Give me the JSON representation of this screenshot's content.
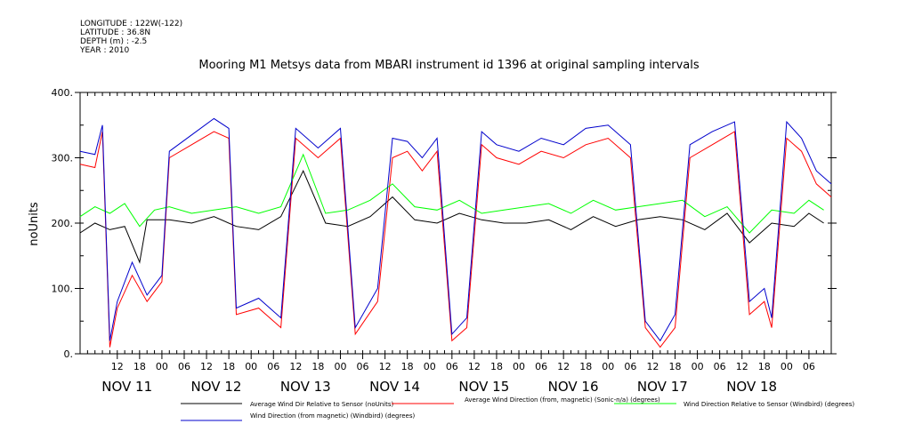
{
  "meta": {
    "longitude": "LONGITUDE : 122W(-122)",
    "latitude": "LATITUDE : 36.8N",
    "depth": "DEPTH (m) : -2.5",
    "year": "YEAR : 2010"
  },
  "chart_data": {
    "type": "line",
    "title": "Mooring M1 Metsys data from MBARI instrument id 1396 at original sampling intervals",
    "ylabel": "noUnits",
    "xlabel": "",
    "ylim": [
      0,
      400
    ],
    "xlim_hours": [
      0,
      202
    ],
    "y_ticks": [
      0,
      100,
      200,
      300,
      400
    ],
    "y_tick_labels": [
      "0.",
      "100.",
      "200.",
      "300.",
      "400."
    ],
    "x_hour_tick_labels": [
      "12",
      "18",
      "00",
      "06",
      "12",
      "18",
      "00",
      "06",
      "12",
      "18",
      "00",
      "06",
      "12",
      "18",
      "00",
      "06",
      "12",
      "18",
      "00",
      "06",
      "12",
      "18",
      "00",
      "06",
      "12",
      "18",
      "00",
      "06",
      "12",
      "18",
      "00",
      "06"
    ],
    "x_hour_tick_hours": [
      10,
      16,
      22,
      28,
      34,
      40,
      46,
      52,
      58,
      64,
      70,
      76,
      82,
      88,
      94,
      100,
      106,
      112,
      118,
      124,
      130,
      136,
      142,
      148,
      154,
      160,
      166,
      172,
      178,
      184,
      190,
      196
    ],
    "day_labels": [
      "NOV 11",
      "NOV 12",
      "NOV 13",
      "NOV 14",
      "NOV 15",
      "NOV 16",
      "NOV 17",
      "NOV 18"
    ],
    "day_label_hours": [
      4,
      28,
      52,
      76,
      100,
      124,
      148,
      172
    ],
    "grid": false,
    "legend_position": "bottom",
    "series": [
      {
        "name": "Average Wind Dir Relative to Sensor (noUnits)",
        "color": "#000000",
        "points": [
          [
            0,
            185
          ],
          [
            4,
            200
          ],
          [
            8,
            190
          ],
          [
            12,
            195
          ],
          [
            16,
            140
          ],
          [
            18,
            205
          ],
          [
            24,
            205
          ],
          [
            30,
            200
          ],
          [
            36,
            210
          ],
          [
            42,
            195
          ],
          [
            48,
            190
          ],
          [
            54,
            210
          ],
          [
            60,
            280
          ],
          [
            66,
            200
          ],
          [
            72,
            195
          ],
          [
            78,
            210
          ],
          [
            84,
            240
          ],
          [
            90,
            205
          ],
          [
            96,
            200
          ],
          [
            102,
            215
          ],
          [
            108,
            205
          ],
          [
            114,
            200
          ],
          [
            120,
            200
          ],
          [
            126,
            205
          ],
          [
            132,
            190
          ],
          [
            138,
            210
          ],
          [
            144,
            195
          ],
          [
            150,
            205
          ],
          [
            156,
            210
          ],
          [
            162,
            205
          ],
          [
            168,
            190
          ],
          [
            174,
            215
          ],
          [
            180,
            170
          ],
          [
            186,
            200
          ],
          [
            192,
            195
          ],
          [
            196,
            215
          ],
          [
            200,
            200
          ]
        ]
      },
      {
        "name": "Average Wind Direction (from, magnetic) (Sonic-n/a) (degrees)",
        "color": "#ff0000",
        "points": [
          [
            0,
            290
          ],
          [
            4,
            285
          ],
          [
            6,
            340
          ],
          [
            8,
            10
          ],
          [
            10,
            70
          ],
          [
            14,
            120
          ],
          [
            18,
            80
          ],
          [
            22,
            110
          ],
          [
            24,
            300
          ],
          [
            30,
            320
          ],
          [
            36,
            340
          ],
          [
            40,
            330
          ],
          [
            42,
            60
          ],
          [
            48,
            70
          ],
          [
            54,
            40
          ],
          [
            58,
            330
          ],
          [
            64,
            300
          ],
          [
            70,
            330
          ],
          [
            74,
            30
          ],
          [
            80,
            80
          ],
          [
            84,
            300
          ],
          [
            88,
            310
          ],
          [
            92,
            280
          ],
          [
            96,
            310
          ],
          [
            100,
            20
          ],
          [
            104,
            40
          ],
          [
            108,
            320
          ],
          [
            112,
            300
          ],
          [
            118,
            290
          ],
          [
            124,
            310
          ],
          [
            130,
            300
          ],
          [
            136,
            320
          ],
          [
            142,
            330
          ],
          [
            148,
            300
          ],
          [
            152,
            40
          ],
          [
            156,
            10
          ],
          [
            160,
            40
          ],
          [
            164,
            300
          ],
          [
            170,
            320
          ],
          [
            176,
            340
          ],
          [
            180,
            60
          ],
          [
            184,
            80
          ],
          [
            186,
            40
          ],
          [
            190,
            330
          ],
          [
            194,
            310
          ],
          [
            198,
            260
          ],
          [
            202,
            240
          ]
        ]
      },
      {
        "name": "Wind Direction Relative to Sensor (Windbird) (degrees)",
        "color": "#00ff00",
        "points": [
          [
            0,
            210
          ],
          [
            4,
            225
          ],
          [
            8,
            215
          ],
          [
            12,
            230
          ],
          [
            16,
            195
          ],
          [
            20,
            220
          ],
          [
            24,
            225
          ],
          [
            30,
            215
          ],
          [
            36,
            220
          ],
          [
            42,
            225
          ],
          [
            48,
            215
          ],
          [
            54,
            225
          ],
          [
            60,
            305
          ],
          [
            66,
            215
          ],
          [
            72,
            220
          ],
          [
            78,
            235
          ],
          [
            84,
            260
          ],
          [
            90,
            225
          ],
          [
            96,
            220
          ],
          [
            102,
            235
          ],
          [
            108,
            215
          ],
          [
            114,
            220
          ],
          [
            120,
            225
          ],
          [
            126,
            230
          ],
          [
            132,
            215
          ],
          [
            138,
            235
          ],
          [
            144,
            220
          ],
          [
            150,
            225
          ],
          [
            156,
            230
          ],
          [
            162,
            235
          ],
          [
            168,
            210
          ],
          [
            174,
            225
          ],
          [
            180,
            185
          ],
          [
            186,
            220
          ],
          [
            192,
            215
          ],
          [
            196,
            235
          ],
          [
            200,
            220
          ]
        ]
      },
      {
        "name": "Wind Direction (from magnetic) (Windbird) (degrees)",
        "color": "#0000cc",
        "points": [
          [
            0,
            310
          ],
          [
            4,
            305
          ],
          [
            6,
            350
          ],
          [
            8,
            20
          ],
          [
            10,
            80
          ],
          [
            14,
            140
          ],
          [
            18,
            90
          ],
          [
            22,
            120
          ],
          [
            24,
            310
          ],
          [
            30,
            335
          ],
          [
            36,
            360
          ],
          [
            40,
            345
          ],
          [
            42,
            70
          ],
          [
            48,
            85
          ],
          [
            54,
            55
          ],
          [
            58,
            345
          ],
          [
            64,
            315
          ],
          [
            70,
            345
          ],
          [
            74,
            40
          ],
          [
            80,
            100
          ],
          [
            84,
            330
          ],
          [
            88,
            325
          ],
          [
            92,
            300
          ],
          [
            96,
            330
          ],
          [
            100,
            30
          ],
          [
            104,
            55
          ],
          [
            108,
            340
          ],
          [
            112,
            320
          ],
          [
            118,
            310
          ],
          [
            124,
            330
          ],
          [
            130,
            320
          ],
          [
            136,
            345
          ],
          [
            142,
            350
          ],
          [
            148,
            320
          ],
          [
            152,
            50
          ],
          [
            156,
            20
          ],
          [
            160,
            60
          ],
          [
            164,
            320
          ],
          [
            170,
            340
          ],
          [
            176,
            355
          ],
          [
            180,
            80
          ],
          [
            184,
            100
          ],
          [
            186,
            55
          ],
          [
            190,
            355
          ],
          [
            194,
            330
          ],
          [
            198,
            280
          ],
          [
            202,
            260
          ]
        ]
      }
    ]
  }
}
